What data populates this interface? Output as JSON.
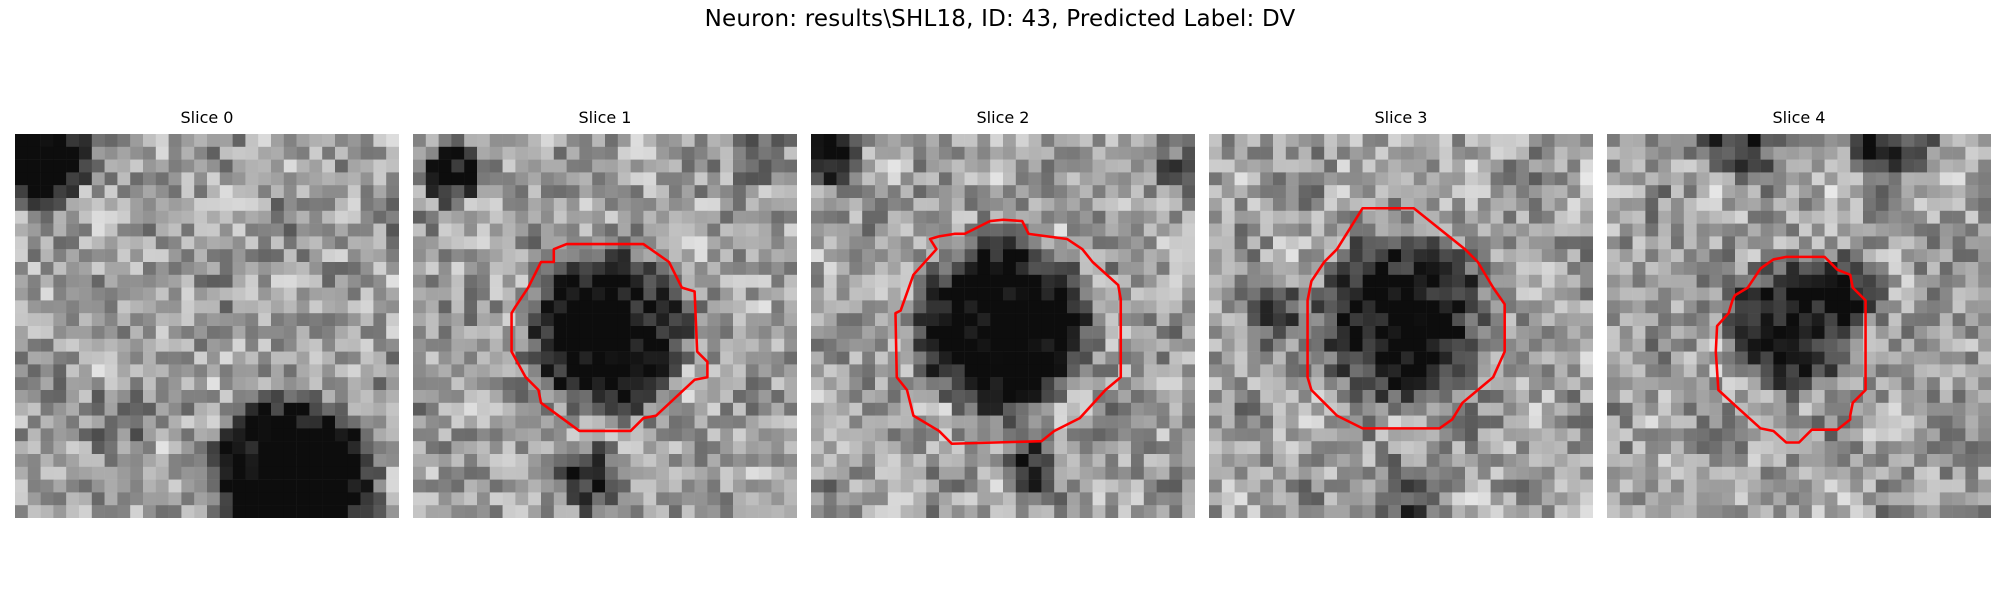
{
  "figure": {
    "title": "Neuron: results\\SHL18, ID: 43, Predicted Label: DV"
  },
  "panels": [
    {
      "title": "Slice 0",
      "has_contour": false
    },
    {
      "title": "Slice 1",
      "has_contour": true
    },
    {
      "title": "Slice 2",
      "has_contour": true
    },
    {
      "title": "Slice 3",
      "has_contour": true
    },
    {
      "title": "Slice 4",
      "has_contour": true
    }
  ],
  "colors": {
    "contour": "#ff0000",
    "background": "#ffffff"
  }
}
